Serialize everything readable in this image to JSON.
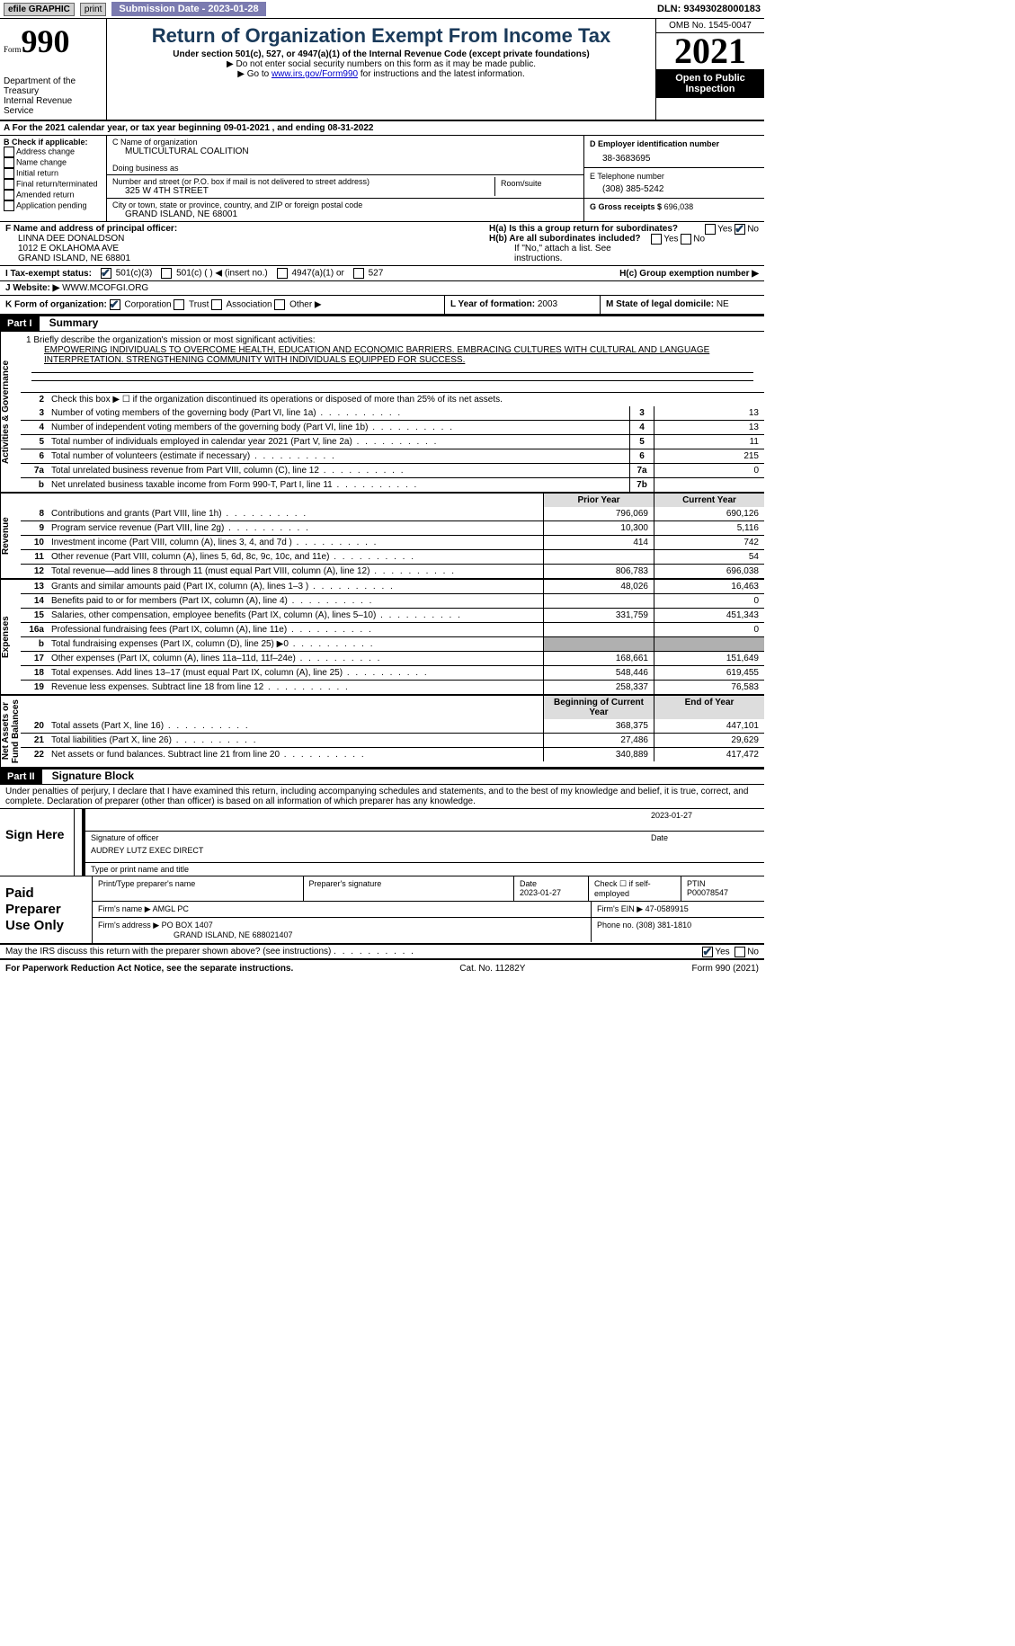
{
  "topbar": {
    "efile": "efile GRAPHIC",
    "print": "print",
    "submission": "Submission Date - 2023-01-28",
    "dln": "DLN: 93493028000183"
  },
  "header": {
    "form_word": "Form",
    "form_num": "990",
    "dept": "Department of the Treasury",
    "irs": "Internal Revenue Service",
    "title": "Return of Organization Exempt From Income Tax",
    "sub": "Under section 501(c), 527, or 4947(a)(1) of the Internal Revenue Code (except private foundations)",
    "note1": "▶ Do not enter social security numbers on this form as it may be made public.",
    "note2_pre": "▶ Go to ",
    "note2_link": "www.irs.gov/Form990",
    "note2_post": " for instructions and the latest information.",
    "omb": "OMB No. 1545-0047",
    "year": "2021",
    "open": "Open to Public Inspection"
  },
  "row_a": "A For the 2021 calendar year, or tax year beginning 09-01-2021    , and ending 08-31-2022",
  "col_b": {
    "title": "B Check if applicable:",
    "items": [
      "Address change",
      "Name change",
      "Initial return",
      "Final return/terminated",
      "Amended return",
      "Application pending"
    ]
  },
  "col_c": {
    "name_lbl": "C Name of organization",
    "name": "MULTICULTURAL COALITION",
    "dba_lbl": "Doing business as",
    "dba": "",
    "addr_lbl": "Number and street (or P.O. box if mail is not delivered to street address)",
    "room_lbl": "Room/suite",
    "addr": "325 W 4TH STREET",
    "city_lbl": "City or town, state or province, country, and ZIP or foreign postal code",
    "city": "GRAND ISLAND, NE  68001"
  },
  "col_d": {
    "ein_lbl": "D Employer identification number",
    "ein": "38-3683695",
    "phone_lbl": "E Telephone number",
    "phone": "(308) 385-5242",
    "gross_lbl": "G Gross receipts $",
    "gross": "696,038"
  },
  "section_f": {
    "lbl": "F Name and address of principal officer:",
    "name": "LINNA DEE DONALDSON",
    "addr1": "1012 E OKLAHOMA AVE",
    "addr2": "GRAND ISLAND, NE  68801",
    "ha": "H(a)  Is this a group return for subordinates?",
    "hb": "H(b)  Are all subordinates included?",
    "hnote": "If \"No,\" attach a list. See instructions."
  },
  "section_i": {
    "lbl": "I  Tax-exempt status:",
    "o1": "501(c)(3)",
    "o2": "501(c) (  ) ◀ (insert no.)",
    "o3": "4947(a)(1) or",
    "o4": "527",
    "hc": "H(c)  Group exemption number ▶"
  },
  "section_j": {
    "lbl": "J  Website: ▶",
    "val": "WWW.MCOFGI.ORG"
  },
  "section_k": {
    "lbl": "K Form of organization:",
    "o1": "Corporation",
    "o2": "Trust",
    "o3": "Association",
    "o4": "Other ▶",
    "l_lbl": "L Year of formation:",
    "l_val": "2003",
    "m_lbl": "M State of legal domicile:",
    "m_val": "NE"
  },
  "part1": {
    "num": "Part I",
    "title": "Summary"
  },
  "mission": {
    "q": "1   Briefly describe the organization's mission or most significant activities:",
    "text": "EMPOWERING INDIVIDUALS TO OVERCOME HEALTH, EDUCATION AND ECONOMIC BARRIERS. EMBRACING CULTURES WITH CULTURAL AND LANGUAGE INTERPRETATION. STRENGTHENING COMMUNITY WITH INDIVIDUALS EQUIPPED FOR SUCCESS."
  },
  "line2": "Check this box ▶ ☐ if the organization discontinued its operations or disposed of more than 25% of its net assets.",
  "ag_lines": [
    {
      "n": "3",
      "d": "Number of voting members of the governing body (Part VI, line 1a)",
      "c": "3",
      "v": "13"
    },
    {
      "n": "4",
      "d": "Number of independent voting members of the governing body (Part VI, line 1b)",
      "c": "4",
      "v": "13"
    },
    {
      "n": "5",
      "d": "Total number of individuals employed in calendar year 2021 (Part V, line 2a)",
      "c": "5",
      "v": "11"
    },
    {
      "n": "6",
      "d": "Total number of volunteers (estimate if necessary)",
      "c": "6",
      "v": "215"
    },
    {
      "n": "7a",
      "d": "Total unrelated business revenue from Part VIII, column (C), line 12",
      "c": "7a",
      "v": "0"
    },
    {
      "n": "b",
      "d": "Net unrelated business taxable income from Form 990-T, Part I, line 11",
      "c": "7b",
      "v": ""
    }
  ],
  "col_headers": {
    "prior": "Prior Year",
    "current": "Current Year",
    "boy": "Beginning of Current Year",
    "eoy": "End of Year"
  },
  "rev_lines": [
    {
      "n": "8",
      "d": "Contributions and grants (Part VIII, line 1h)",
      "p": "796,069",
      "c": "690,126"
    },
    {
      "n": "9",
      "d": "Program service revenue (Part VIII, line 2g)",
      "p": "10,300",
      "c": "5,116"
    },
    {
      "n": "10",
      "d": "Investment income (Part VIII, column (A), lines 3, 4, and 7d )",
      "p": "414",
      "c": "742"
    },
    {
      "n": "11",
      "d": "Other revenue (Part VIII, column (A), lines 5, 6d, 8c, 9c, 10c, and 11e)",
      "p": "",
      "c": "54"
    },
    {
      "n": "12",
      "d": "Total revenue—add lines 8 through 11 (must equal Part VIII, column (A), line 12)",
      "p": "806,783",
      "c": "696,038"
    }
  ],
  "exp_lines": [
    {
      "n": "13",
      "d": "Grants and similar amounts paid (Part IX, column (A), lines 1–3 )",
      "p": "48,026",
      "c": "16,463"
    },
    {
      "n": "14",
      "d": "Benefits paid to or for members (Part IX, column (A), line 4)",
      "p": "",
      "c": "0"
    },
    {
      "n": "15",
      "d": "Salaries, other compensation, employee benefits (Part IX, column (A), lines 5–10)",
      "p": "331,759",
      "c": "451,343"
    },
    {
      "n": "16a",
      "d": "Professional fundraising fees (Part IX, column (A), line 11e)",
      "p": "",
      "c": "0"
    },
    {
      "n": "b",
      "d": "Total fundraising expenses (Part IX, column (D), line 25) ▶0",
      "p": "SHADE",
      "c": "SHADE"
    },
    {
      "n": "17",
      "d": "Other expenses (Part IX, column (A), lines 11a–11d, 11f–24e)",
      "p": "168,661",
      "c": "151,649"
    },
    {
      "n": "18",
      "d": "Total expenses. Add lines 13–17 (must equal Part IX, column (A), line 25)",
      "p": "548,446",
      "c": "619,455"
    },
    {
      "n": "19",
      "d": "Revenue less expenses. Subtract line 18 from line 12",
      "p": "258,337",
      "c": "76,583"
    }
  ],
  "na_lines": [
    {
      "n": "20",
      "d": "Total assets (Part X, line 16)",
      "p": "368,375",
      "c": "447,101"
    },
    {
      "n": "21",
      "d": "Total liabilities (Part X, line 26)",
      "p": "27,486",
      "c": "29,629"
    },
    {
      "n": "22",
      "d": "Net assets or fund balances. Subtract line 21 from line 20",
      "p": "340,889",
      "c": "417,472"
    }
  ],
  "vtabs": {
    "ag": "Activities & Governance",
    "rev": "Revenue",
    "exp": "Expenses",
    "na": "Net Assets or\nFund Balances"
  },
  "part2": {
    "num": "Part II",
    "title": "Signature Block",
    "decl": "Under penalties of perjury, I declare that I have examined this return, including accompanying schedules and statements, and to the best of my knowledge and belief, it is true, correct, and complete. Declaration of preparer (other than officer) is based on all information of which preparer has any knowledge."
  },
  "sign": {
    "here": "Sign Here",
    "sig_lbl": "Signature of officer",
    "date_lbl": "Date",
    "date": "2023-01-27",
    "name": "AUDREY LUTZ  EXEC DIRECT",
    "name_lbl": "Type or print name and title"
  },
  "prep": {
    "lbl": "Paid Preparer Use Only",
    "h1": "Print/Type preparer's name",
    "h2": "Preparer's signature",
    "h3": "Date",
    "h3v": "2023-01-27",
    "h4": "Check ☐ if self-employed",
    "h5": "PTIN",
    "h5v": "P00078547",
    "firm_lbl": "Firm's name   ▶",
    "firm": "AMGL PC",
    "ein_lbl": "Firm's EIN ▶",
    "ein": "47-0589915",
    "addr_lbl": "Firm's address ▶",
    "addr1": "PO BOX 1407",
    "addr2": "GRAND ISLAND, NE  688021407",
    "phone_lbl": "Phone no.",
    "phone": "(308) 381-1810"
  },
  "may_irs": "May the IRS discuss this return with the preparer shown above? (see instructions)",
  "footer": {
    "l": "For Paperwork Reduction Act Notice, see the separate instructions.",
    "m": "Cat. No. 11282Y",
    "r": "Form 990 (2021)"
  },
  "yes": "Yes",
  "no": "No"
}
